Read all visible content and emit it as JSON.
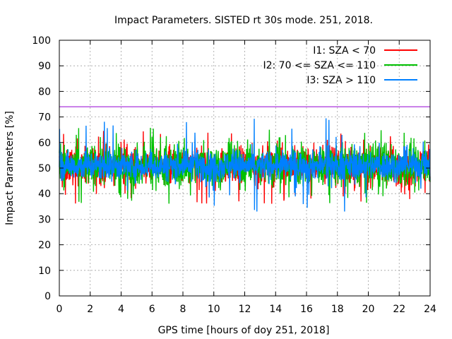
{
  "chart_data": {
    "type": "line",
    "title": "Impact Parameters. SISTED rt 30s mode. 251, 2018.",
    "xlabel": "GPS time [hours of doy 251, 2018]",
    "ylabel": "Impact Parameters [%]",
    "xlim": [
      0,
      24
    ],
    "ylim": [
      0,
      100
    ],
    "x_ticks": [
      "0",
      "2",
      "4",
      "6",
      "8",
      "10",
      "12",
      "14",
      "16",
      "18",
      "20",
      "22",
      "24"
    ],
    "y_ticks": [
      "0",
      "10",
      "20",
      "30",
      "40",
      "50",
      "60",
      "70",
      "80",
      "90",
      "100"
    ],
    "grid": true,
    "legend_position": "top-right",
    "reference_line": {
      "y": 74,
      "color": "#9400d3"
    },
    "series": [
      {
        "name": "I1: SZA < 70",
        "color": "#ff0000",
        "style": "dense-noise",
        "center": 51,
        "typical_range": [
          44,
          59
        ],
        "envelope_min": 35,
        "envelope_max": 66,
        "x_range": [
          0,
          24
        ]
      },
      {
        "name": "I2: 70 <= SZA <= 110",
        "color": "#00c000",
        "style": "dense-noise",
        "center": 51,
        "typical_range": [
          43,
          60
        ],
        "envelope_min": 32,
        "envelope_max": 66,
        "x_range": [
          0,
          24
        ]
      },
      {
        "name": "I3: SZA > 110",
        "color": "#0080ff",
        "style": "dense-noise",
        "center": 51,
        "typical_range": [
          45,
          57
        ],
        "envelope_min": 33,
        "envelope_max": 70,
        "x_range": [
          0,
          24
        ]
      }
    ]
  }
}
